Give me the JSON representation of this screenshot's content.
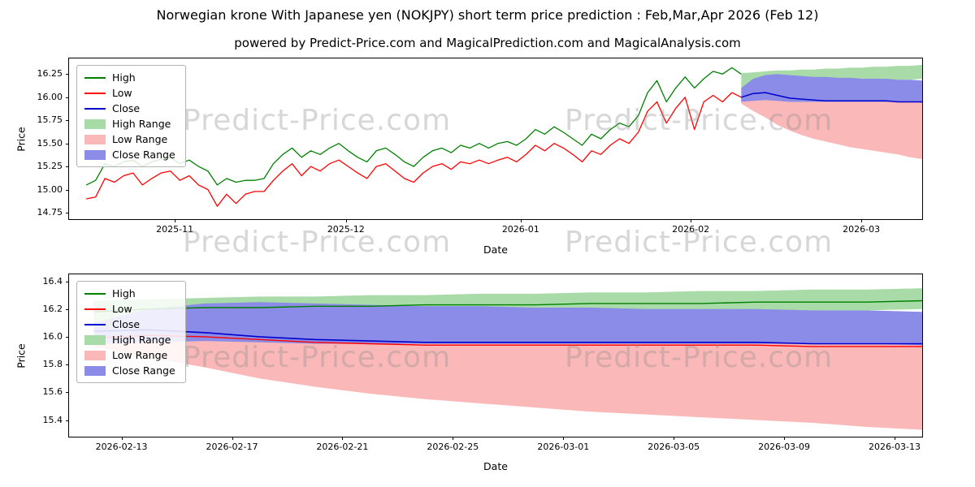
{
  "title": "Norwegian krone With Japanese yen (NOKJPY) short term price prediction : Feb,Mar,Apr 2026 (Feb 12)",
  "subtitle": "powered by Predict-Price.com and MagicalPrediction.com and MagicalAnalysis.com",
  "watermark": "Predict-Price.com",
  "colors": {
    "high": "#008000",
    "low": "#ff0000",
    "close": "#0000cc",
    "high_range": "#a8dba8",
    "low_range": "#fbb8b8",
    "close_range": "#8b8be8"
  },
  "chart_data": [
    {
      "type": "line",
      "title": "",
      "xlabel": "Date",
      "ylabel": "Price",
      "xlim": [
        0,
        148.5
      ],
      "ylim": [
        14.68,
        16.42
      ],
      "grid": false,
      "legend_position": "upper left",
      "xticks": [
        {
          "v": 18.4,
          "label": "2025-11"
        },
        {
          "v": 48.2,
          "label": "2025-12"
        },
        {
          "v": 78.6,
          "label": "2026-01"
        },
        {
          "v": 108.2,
          "label": "2026-02"
        },
        {
          "v": 137.9,
          "label": "2026-03"
        }
      ],
      "yticks": [
        {
          "v": 14.75,
          "label": "14.75"
        },
        {
          "v": 15.0,
          "label": "15.00"
        },
        {
          "v": 15.25,
          "label": "15.25"
        },
        {
          "v": 15.5,
          "label": "15.50"
        },
        {
          "v": 15.75,
          "label": "15.75"
        },
        {
          "v": 16.0,
          "label": "16.00"
        },
        {
          "v": 16.25,
          "label": "16.25"
        }
      ],
      "legend": [
        {
          "label": "High",
          "kind": "line",
          "color": "#008000"
        },
        {
          "label": "Low",
          "kind": "line",
          "color": "#ff0000"
        },
        {
          "label": "Close",
          "kind": "line",
          "color": "#0000cc"
        },
        {
          "label": "High Range",
          "kind": "patch",
          "color": "#a8dba8"
        },
        {
          "label": "Low Range",
          "kind": "patch",
          "color": "#fbb8b8"
        },
        {
          "label": "Close Range",
          "kind": "patch",
          "color": "#8b8be8"
        }
      ],
      "bands": [
        {
          "name": "high-range",
          "color": "#a8dba8",
          "x0": 117,
          "x1": 148.5,
          "upper": [
            16.26,
            16.27,
            16.28,
            16.29,
            16.29,
            16.3,
            16.3,
            16.31,
            16.31,
            16.32,
            16.32,
            16.33,
            16.33,
            16.34,
            16.34,
            16.35
          ],
          "lower": [
            16.08,
            16.1,
            16.12,
            16.13,
            16.14,
            16.15,
            16.15,
            16.16,
            16.16,
            16.17,
            16.17,
            16.18,
            16.18,
            16.19,
            16.19,
            16.2
          ]
        },
        {
          "name": "low-range",
          "color": "#fbb8b8",
          "x0": 117,
          "x1": 148.5,
          "upper": [
            16.0,
            16.0,
            15.99,
            15.98,
            15.97,
            15.97,
            15.96,
            15.96,
            15.96,
            15.96,
            15.96,
            15.96,
            15.96,
            15.95,
            15.95,
            15.95
          ],
          "lower": [
            15.93,
            15.85,
            15.78,
            15.7,
            15.64,
            15.59,
            15.55,
            15.52,
            15.49,
            15.46,
            15.44,
            15.42,
            15.4,
            15.38,
            15.35,
            15.33
          ]
        },
        {
          "name": "close-range",
          "color": "#8b8be8",
          "x0": 117,
          "x1": 148.5,
          "upper": [
            16.1,
            16.2,
            16.24,
            16.25,
            16.24,
            16.23,
            16.22,
            16.22,
            16.21,
            16.21,
            16.2,
            16.2,
            16.2,
            16.19,
            16.19,
            16.18
          ],
          "lower": [
            15.95,
            15.96,
            15.97,
            15.96,
            15.95,
            15.95,
            15.95,
            15.95,
            15.95,
            15.95,
            15.95,
            15.95,
            15.95,
            15.95,
            15.95,
            15.94
          ]
        }
      ],
      "lines": [
        {
          "name": "high",
          "color": "#008000",
          "width": 1.3,
          "x0": 3,
          "x1": 117,
          "y": [
            15.05,
            15.1,
            15.28,
            15.25,
            15.3,
            15.32,
            15.25,
            15.3,
            15.33,
            15.35,
            15.28,
            15.32,
            15.25,
            15.2,
            15.05,
            15.12,
            15.08,
            15.1,
            15.1,
            15.12,
            15.28,
            15.38,
            15.45,
            15.35,
            15.42,
            15.38,
            15.45,
            15.5,
            15.42,
            15.35,
            15.3,
            15.42,
            15.45,
            15.38,
            15.3,
            15.25,
            15.35,
            15.42,
            15.45,
            15.4,
            15.48,
            15.45,
            15.5,
            15.45,
            15.5,
            15.52,
            15.48,
            15.55,
            15.65,
            15.6,
            15.68,
            15.62,
            15.55,
            15.48,
            15.6,
            15.55,
            15.65,
            15.72,
            15.68,
            15.8,
            16.05,
            16.18,
            15.95,
            16.1,
            16.22,
            16.1,
            16.2,
            16.28,
            16.25,
            16.32,
            16.25
          ]
        },
        {
          "name": "low",
          "color": "#ff0000",
          "width": 1.3,
          "x0": 3,
          "x1": 117,
          "y": [
            14.9,
            14.92,
            15.12,
            15.08,
            15.15,
            15.18,
            15.05,
            15.12,
            15.18,
            15.2,
            15.1,
            15.15,
            15.05,
            15.0,
            14.82,
            14.95,
            14.85,
            14.95,
            14.98,
            14.98,
            15.1,
            15.2,
            15.28,
            15.15,
            15.25,
            15.2,
            15.28,
            15.32,
            15.25,
            15.18,
            15.12,
            15.25,
            15.28,
            15.2,
            15.12,
            15.08,
            15.18,
            15.25,
            15.28,
            15.22,
            15.3,
            15.28,
            15.32,
            15.28,
            15.32,
            15.35,
            15.3,
            15.38,
            15.48,
            15.42,
            15.5,
            15.45,
            15.38,
            15.3,
            15.42,
            15.38,
            15.48,
            15.55,
            15.5,
            15.62,
            15.85,
            15.95,
            15.72,
            15.88,
            16.0,
            15.65,
            15.95,
            16.02,
            15.95,
            16.05,
            16.0
          ]
        },
        {
          "name": "close",
          "color": "#0000cc",
          "width": 1.5,
          "x0": 117,
          "x1": 148.5,
          "y": [
            16.0,
            16.04,
            16.05,
            16.02,
            15.99,
            15.98,
            15.97,
            15.96,
            15.96,
            15.96,
            15.96,
            15.96,
            15.96,
            15.95,
            15.95,
            15.95
          ]
        }
      ]
    },
    {
      "type": "line",
      "title": "",
      "xlabel": "Date",
      "ylabel": "Price",
      "xlim": [
        -0.9,
        30.0
      ],
      "ylim": [
        15.28,
        16.45
      ],
      "grid": false,
      "legend_position": "upper left",
      "xticks": [
        {
          "v": 1,
          "label": "2026-02-13"
        },
        {
          "v": 5,
          "label": "2026-02-17"
        },
        {
          "v": 9,
          "label": "2026-02-21"
        },
        {
          "v": 13,
          "label": "2026-02-25"
        },
        {
          "v": 17,
          "label": "2026-03-01"
        },
        {
          "v": 21,
          "label": "2026-03-05"
        },
        {
          "v": 25,
          "label": "2026-03-09"
        },
        {
          "v": 29,
          "label": "2026-03-13"
        }
      ],
      "yticks": [
        {
          "v": 15.4,
          "label": "15.4"
        },
        {
          "v": 15.6,
          "label": "15.6"
        },
        {
          "v": 15.8,
          "label": "15.8"
        },
        {
          "v": 16.0,
          "label": "16.0"
        },
        {
          "v": 16.2,
          "label": "16.2"
        },
        {
          "v": 16.4,
          "label": "16.4"
        }
      ],
      "legend": [
        {
          "label": "High",
          "kind": "line",
          "color": "#008000"
        },
        {
          "label": "Low",
          "kind": "line",
          "color": "#ff0000"
        },
        {
          "label": "Close",
          "kind": "line",
          "color": "#0000cc"
        },
        {
          "label": "High Range",
          "kind": "patch",
          "color": "#a8dba8"
        },
        {
          "label": "Low Range",
          "kind": "patch",
          "color": "#fbb8b8"
        },
        {
          "label": "Close Range",
          "kind": "patch",
          "color": "#8b8be8"
        }
      ],
      "bands": [
        {
          "name": "high-range",
          "color": "#a8dba8",
          "x0": 0,
          "x1": 30,
          "upper": [
            16.26,
            16.27,
            16.28,
            16.29,
            16.29,
            16.3,
            16.3,
            16.31,
            16.31,
            16.32,
            16.32,
            16.33,
            16.33,
            16.34,
            16.34,
            16.35
          ],
          "lower": [
            16.08,
            16.1,
            16.12,
            16.13,
            16.14,
            16.15,
            16.15,
            16.16,
            16.16,
            16.17,
            16.17,
            16.18,
            16.18,
            16.19,
            16.19,
            16.2
          ]
        },
        {
          "name": "low-range",
          "color": "#fbb8b8",
          "x0": 0,
          "x1": 30,
          "upper": [
            16.0,
            16.0,
            15.99,
            15.98,
            15.97,
            15.97,
            15.96,
            15.96,
            15.96,
            15.96,
            15.96,
            15.96,
            15.96,
            15.95,
            15.95,
            15.95
          ],
          "lower": [
            15.93,
            15.85,
            15.78,
            15.7,
            15.64,
            15.59,
            15.55,
            15.52,
            15.49,
            15.46,
            15.44,
            15.42,
            15.4,
            15.38,
            15.35,
            15.33
          ]
        },
        {
          "name": "close-range",
          "color": "#8b8be8",
          "x0": 0,
          "x1": 30,
          "upper": [
            16.1,
            16.2,
            16.24,
            16.25,
            16.24,
            16.23,
            16.22,
            16.22,
            16.21,
            16.21,
            16.2,
            16.2,
            16.2,
            16.19,
            16.19,
            16.18
          ],
          "lower": [
            15.95,
            15.96,
            15.97,
            15.96,
            15.95,
            15.95,
            15.95,
            15.95,
            15.95,
            15.95,
            15.95,
            15.95,
            15.95,
            15.95,
            15.95,
            15.94
          ]
        }
      ],
      "lines": [
        {
          "name": "high",
          "color": "#008000",
          "width": 1.4,
          "x0": 0,
          "x1": 30,
          "y": [
            16.18,
            16.2,
            16.21,
            16.21,
            16.22,
            16.22,
            16.23,
            16.23,
            16.23,
            16.24,
            16.24,
            16.24,
            16.25,
            16.25,
            16.25,
            16.26
          ]
        },
        {
          "name": "low",
          "color": "#ff0000",
          "width": 1.4,
          "x0": 0,
          "x1": 30,
          "y": [
            15.99,
            16.01,
            16.0,
            15.98,
            15.96,
            15.95,
            15.94,
            15.94,
            15.94,
            15.94,
            15.94,
            15.94,
            15.94,
            15.93,
            15.93,
            15.93
          ]
        },
        {
          "name": "close",
          "color": "#0000cc",
          "width": 1.6,
          "x0": 0,
          "x1": 30,
          "y": [
            16.04,
            16.05,
            16.03,
            16.0,
            15.98,
            15.97,
            15.96,
            15.96,
            15.96,
            15.96,
            15.96,
            15.96,
            15.96,
            15.95,
            15.95,
            15.95
          ]
        }
      ]
    }
  ]
}
